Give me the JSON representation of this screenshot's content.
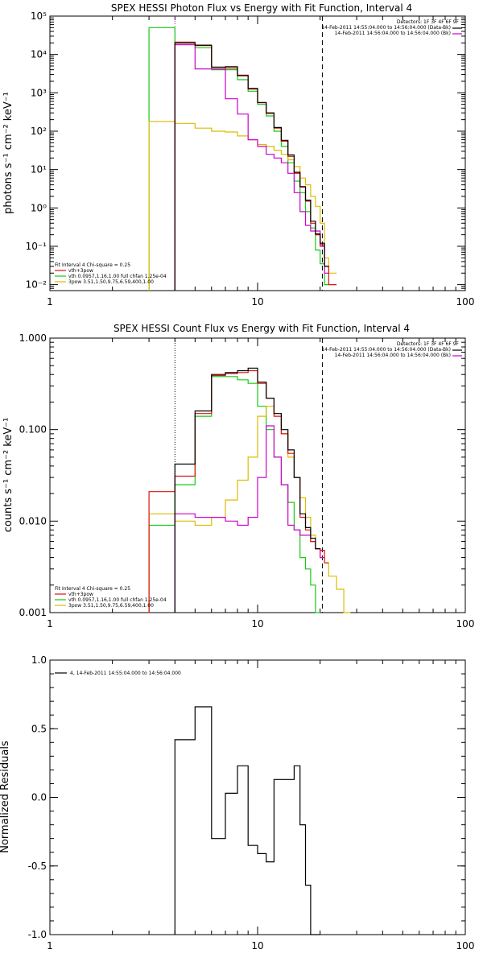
{
  "colors": {
    "total": "#000000",
    "vth_3pow": "#dd1111",
    "vth": "#11cc11",
    "pow": "#ddbb00",
    "bk": "#cc00cc",
    "axes": "#000000"
  },
  "chart_data": [
    {
      "type": "line",
      "title": "SPEX HESSI Photon Flux vs Energy with Fit Function, Interval 4",
      "ylabel": "photons s⁻¹ cm⁻² keV⁻¹",
      "xlim": [
        1,
        100
      ],
      "ylim": [
        0.007,
        100000
      ],
      "xscale": "log",
      "yscale": "log",
      "x_ticks": [
        "1",
        "10",
        "100"
      ],
      "y_ticks": [
        "10⁻²",
        "10⁻¹",
        "10⁰",
        "10¹",
        "10²",
        "10³",
        "10⁴",
        "10⁵"
      ],
      "y_tick_values": [
        0.01,
        0.1,
        1,
        10,
        100,
        1000,
        10000,
        100000
      ],
      "vlines": [
        {
          "x": 4.0,
          "style": "dotted",
          "color_key": "bk"
        },
        {
          "x": 20.5,
          "style": "dashed",
          "color_key": "axes"
        }
      ],
      "info_text": [
        "Detectors: 1F 3F 4F 6F 9F",
        "14-Feb-2011 14:55:04.000 to 14:56:04.000 (Data-Bk)",
        "14-Feb-2011 14:56:04.000 to 14:56:04.000 (Bk)"
      ],
      "legend": [
        "Fit Interval  4    Chi-square = 0.25",
        "vth+3pow",
        "vth 0.0957,1.16,1.00  full chfan 1.25e-04",
        "3pow 3.51,1.50,9.75,6.59,400,1.00"
      ],
      "series_bin_edges": [
        3.0,
        4.0,
        5.0,
        6.0,
        7.0,
        8.0,
        9.0,
        10.0,
        11.0,
        12.0,
        13.0,
        14.0,
        15.0,
        16.0,
        17.0,
        18.0,
        19.0,
        20.0,
        21.0,
        22.0,
        24.0
      ],
      "series": [
        {
          "color_key": "vth",
          "values": [
            50000,
            18000,
            15000,
            4000,
            4000,
            2200,
            1100,
            500,
            250,
            100,
            40,
            15,
            5,
            2.5,
            0.8,
            0.3,
            0.08,
            0.035,
            0.01,
            null
          ]
        },
        {
          "color_key": "pow",
          "values": [
            180,
            160,
            120,
            100,
            95,
            75,
            60,
            45,
            40,
            32,
            25,
            18,
            12,
            6,
            4,
            2,
            1.1,
            0.4,
            0.05,
            0.02
          ]
        },
        {
          "color_key": "bk",
          "values": [
            null,
            18000,
            4200,
            4200,
            700,
            280,
            60,
            40,
            25,
            20,
            15,
            8,
            2.5,
            0.8,
            0.35,
            0.25,
            0.25,
            0.1,
            0.02,
            null
          ]
        },
        {
          "color_key": "vth_3pow",
          "values": [
            null,
            21000,
            17000,
            4600,
            4400,
            2900,
            1250,
            550,
            290,
            120,
            55,
            22,
            8,
            3.5,
            1.5,
            0.4,
            0.2,
            0.11,
            0.03,
            0.01
          ]
        },
        {
          "color_key": "total",
          "values": [
            null,
            20000,
            17500,
            4700,
            4800,
            2800,
            1300,
            560,
            300,
            125,
            58,
            24,
            8.5,
            3.6,
            1.6,
            0.45,
            0.21,
            0.12,
            0.03,
            null
          ]
        }
      ]
    },
    {
      "type": "line",
      "title": "SPEX HESSI Count Flux vs Energy with Fit Function, Interval 4",
      "ylabel": "counts s⁻¹ cm⁻² keV⁻¹",
      "xlim": [
        1,
        100
      ],
      "ylim": [
        0.001,
        1.0
      ],
      "xscale": "log",
      "yscale": "log",
      "x_ticks": [
        "1",
        "10",
        "100"
      ],
      "y_ticks": [
        "0.001",
        "0.010",
        "0.100",
        "1.000"
      ],
      "y_tick_values": [
        0.001,
        0.01,
        0.1,
        1.0
      ],
      "vlines": [
        {
          "x": 4.0,
          "style": "dotted",
          "color_key": "axes"
        },
        {
          "x": 20.5,
          "style": "dashed",
          "color_key": "axes"
        }
      ],
      "info_text": [
        "Detectors: 1F 3F 4F 6F 9F",
        "14-Feb-2011 14:55:04.000 to 14:56:04.000 (Data-Bk)",
        "14-Feb-2011 14:56:04.000 to 14:56:04.000 (Bk)"
      ],
      "legend": [
        "Fit Interval  4    Chi-square = 0.25",
        "vth+3pow",
        "vth 0.0957,1.16,1.00  full chfan 1.25e-04",
        "3pow 3.51,1.50,9.75,6.59,400,1.00"
      ],
      "series_bin_edges": [
        3.0,
        4.0,
        5.0,
        6.0,
        7.0,
        8.0,
        9.0,
        10.0,
        11.0,
        12.0,
        13.0,
        14.0,
        15.0,
        16.0,
        17.0,
        18.0,
        19.0,
        20.0,
        21.0,
        22.0,
        24.0,
        26.0,
        28.0
      ],
      "series": [
        {
          "color_key": "vth",
          "values": [
            0.009,
            0.025,
            0.14,
            0.38,
            0.38,
            0.35,
            0.32,
            0.18,
            0.1,
            0.05,
            0.025,
            0.016,
            0.008,
            0.004,
            0.003,
            0.002,
            0.001,
            null,
            null,
            null,
            null,
            null
          ]
        },
        {
          "color_key": "pow",
          "values": [
            0.012,
            0.01,
            0.009,
            0.011,
            0.017,
            0.028,
            0.05,
            0.14,
            0.18,
            0.15,
            0.09,
            0.05,
            0.03,
            0.018,
            0.011,
            0.007,
            0.005,
            0.004,
            0.0035,
            0.0025,
            0.0018,
            0.001
          ]
        },
        {
          "color_key": "bk",
          "values": [
            null,
            0.012,
            0.011,
            0.011,
            0.01,
            0.009,
            0.011,
            0.03,
            0.11,
            0.05,
            0.025,
            0.009,
            0.008,
            0.007,
            0.007,
            0.006,
            0.005,
            0.004,
            null,
            null,
            null,
            null
          ]
        },
        {
          "color_key": "vth_3pow",
          "values": [
            0.021,
            0.031,
            0.15,
            0.39,
            0.41,
            0.42,
            0.44,
            0.32,
            0.22,
            0.14,
            0.09,
            0.055,
            0.03,
            0.011,
            0.008,
            0.006,
            0.005,
            0.0048,
            0.0035,
            null,
            null,
            null
          ]
        },
        {
          "color_key": "total",
          "values": [
            null,
            0.042,
            0.16,
            0.4,
            0.42,
            0.44,
            0.47,
            0.33,
            0.22,
            0.15,
            0.1,
            0.06,
            0.03,
            0.012,
            0.0085,
            0.0065,
            0.005,
            null,
            null,
            null,
            null,
            null
          ]
        }
      ]
    },
    {
      "type": "line",
      "title": "",
      "ylabel": "Normalized Residuals",
      "xlim": [
        1,
        100
      ],
      "ylim": [
        -1.0,
        1.0
      ],
      "xscale": "log",
      "yscale": "linear",
      "x_ticks": [
        "1",
        "10",
        "100"
      ],
      "y_ticks": [
        "-1.0",
        "-0.5",
        "0.0",
        "0.5",
        "1.0"
      ],
      "y_tick_values": [
        -1.0,
        -0.5,
        0.0,
        0.5,
        1.0
      ],
      "legend": [
        "4, 14-Feb-2011 14:55:04.000 to 14:56:04.000"
      ],
      "series_bin_edges": [
        4.0,
        5.0,
        6.0,
        7.0,
        8.0,
        9.0,
        10.0,
        11.0,
        12.0,
        13.0,
        14.0,
        15.0,
        16.0,
        17.0,
        18.0,
        19.0,
        20.0
      ],
      "series": [
        {
          "color_key": "total",
          "values": [
            0.42,
            0.66,
            -0.3,
            0.03,
            0.23,
            -0.35,
            -0.41,
            -0.47,
            0.13,
            0.13,
            0.13,
            0.23,
            -0.2,
            -0.64,
            -1.0,
            -1.0
          ]
        }
      ]
    }
  ]
}
